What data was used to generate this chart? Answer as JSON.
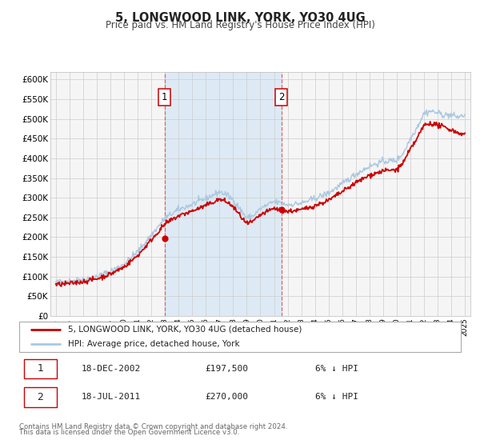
{
  "title": "5, LONGWOOD LINK, YORK, YO30 4UG",
  "subtitle": "Price paid vs. HM Land Registry's House Price Index (HPI)",
  "legend_line1": "5, LONGWOOD LINK, YORK, YO30 4UG (detached house)",
  "legend_line2": "HPI: Average price, detached house, York",
  "footer1": "Contains HM Land Registry data © Crown copyright and database right 2024.",
  "footer2": "This data is licensed under the Open Government Licence v3.0.",
  "sale1_date": "18-DEC-2002",
  "sale1_price": "£197,500",
  "sale1_hpi": "6% ↓ HPI",
  "sale1_year": 2002.96,
  "sale1_value": 197500,
  "sale2_date": "18-JUL-2011",
  "sale2_price": "£270,000",
  "sale2_hpi": "6% ↓ HPI",
  "sale2_year": 2011.54,
  "sale2_value": 270000,
  "hpi_color": "#aac8e0",
  "price_color": "#cc0000",
  "vline_color": "#e05050",
  "highlight_color": "#ddeaf5",
  "grid_color": "#cccccc",
  "bg_color": "#f5f5f5",
  "ylim": [
    0,
    620000
  ],
  "xlim_start": 1994.6,
  "xlim_end": 2025.4,
  "yticks": [
    0,
    50000,
    100000,
    150000,
    200000,
    250000,
    300000,
    350000,
    400000,
    450000,
    500000,
    550000,
    600000
  ],
  "ytick_labels": [
    "£0",
    "£50K",
    "£100K",
    "£150K",
    "£200K",
    "£250K",
    "£300K",
    "£350K",
    "£400K",
    "£450K",
    "£500K",
    "£550K",
    "£600K"
  ],
  "xticks": [
    1995,
    1996,
    1997,
    1998,
    1999,
    2000,
    2001,
    2002,
    2003,
    2004,
    2005,
    2006,
    2007,
    2008,
    2009,
    2010,
    2011,
    2012,
    2013,
    2014,
    2015,
    2016,
    2017,
    2018,
    2019,
    2020,
    2021,
    2022,
    2023,
    2024,
    2025
  ]
}
